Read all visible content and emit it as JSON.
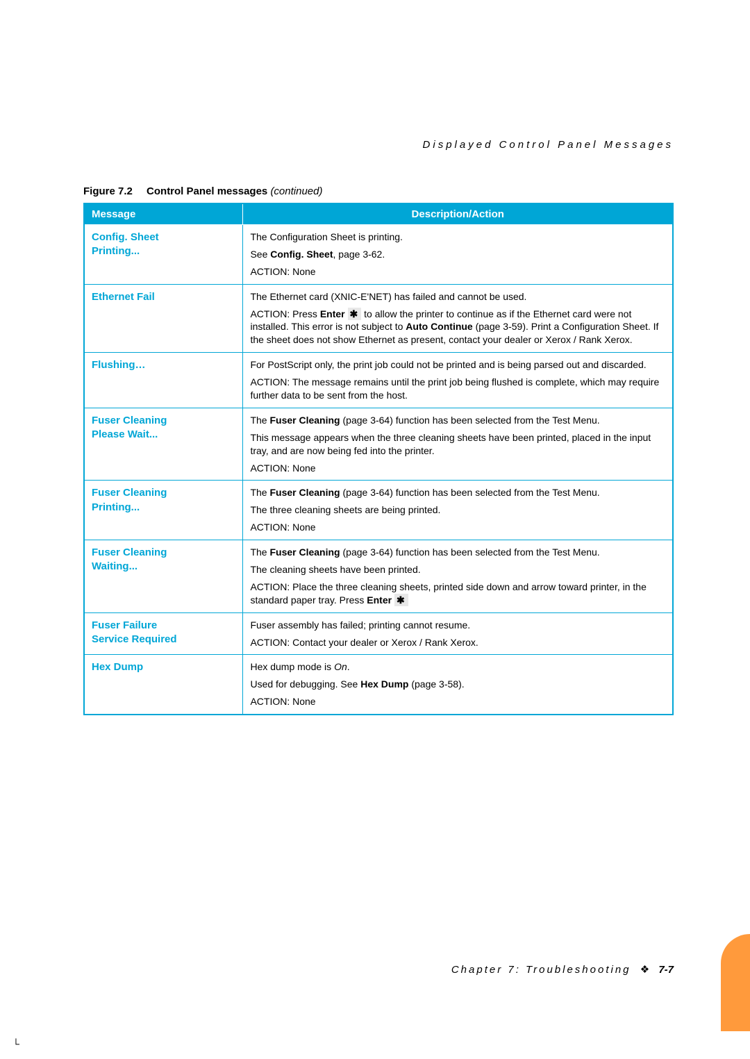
{
  "header": {
    "text": "Displayed Control Panel Messages"
  },
  "caption": {
    "figure_label": "Figure 7.2",
    "title": "Control Panel messages",
    "continued": "(continued)"
  },
  "table": {
    "headers": {
      "message": "Message",
      "description": "Description/Action"
    }
  },
  "rows": {
    "r1": {
      "msg1": "Config. Sheet",
      "msg2": "Printing...",
      "d1a": "The Configuration Sheet is printing.",
      "d1b_pre": "See ",
      "d1b_bold": "Config. Sheet",
      "d1b_post": ", page 3-62.",
      "d1c": "ACTION: None"
    },
    "r2": {
      "msg1": "Ethernet Fail",
      "d1": "The Ethernet card (XNIC-E'NET) has failed and cannot be used.",
      "d2_pre": "ACTION: Press ",
      "d2_bold": "Enter",
      "d2_mid": " to allow the printer to continue as if the Ethernet card were not installed. This error is not subject to ",
      "d2_bold2": "Auto Continue",
      "d2_post": " (page 3-59). Print a Configuration Sheet. If the sheet does not show Ethernet as present, contact your dealer or Xerox / Rank Xerox."
    },
    "r3": {
      "msg1": "Flushing…",
      "d1": "For PostScript only, the print job could not be printed and is being parsed out and discarded.",
      "d2": "ACTION: The message remains until the print job being flushed is complete, which may require further data to be sent from the host."
    },
    "r4": {
      "msg1": "Fuser Cleaning",
      "msg2": "Please Wait...",
      "d1_pre": "The ",
      "d1_bold": "Fuser Cleaning",
      "d1_post": " (page 3-64) function has been selected from the Test Menu.",
      "d2": "This message appears when the three cleaning sheets have been printed, placed in the input tray, and are now being fed into the printer.",
      "d3": "ACTION: None"
    },
    "r5": {
      "msg1": "Fuser Cleaning",
      "msg2": "Printing...",
      "d1_pre": "The ",
      "d1_bold": "Fuser Cleaning",
      "d1_post": " (page 3-64) function has been selected from the Test Menu.",
      "d2": "The three cleaning sheets are being printed.",
      "d3": "ACTION: None"
    },
    "r6": {
      "msg1": "Fuser Cleaning",
      "msg2": "Waiting...",
      "d1_pre": "The ",
      "d1_bold": "Fuser Cleaning",
      "d1_post": " (page 3-64) function has been selected from the Test Menu.",
      "d2": "The cleaning sheets have been printed.",
      "d3_pre": "ACTION: Place the three cleaning sheets, printed side down and arrow toward printer, in the standard paper tray. Press ",
      "d3_bold": "Enter"
    },
    "r7": {
      "msg1": "Fuser Failure",
      "msg2": "Service Required",
      "d1": "Fuser assembly has failed; printing cannot resume.",
      "d2": "ACTION: Contact your dealer or Xerox / Rank Xerox."
    },
    "r8": {
      "msg1": "Hex Dump",
      "d1_pre": "Hex dump mode is ",
      "d1_ital": "On",
      "d1_post": ".",
      "d2_pre": "Used for debugging. See ",
      "d2_bold": "Hex Dump",
      "d2_post": " (page 3-58).",
      "d3": "ACTION: None"
    }
  },
  "footer": {
    "chapter": "Chapter 7: Troubleshooting",
    "page": "7-7"
  },
  "glyphs": {
    "star": "✱",
    "diamond": "❖",
    "crop": "└"
  }
}
